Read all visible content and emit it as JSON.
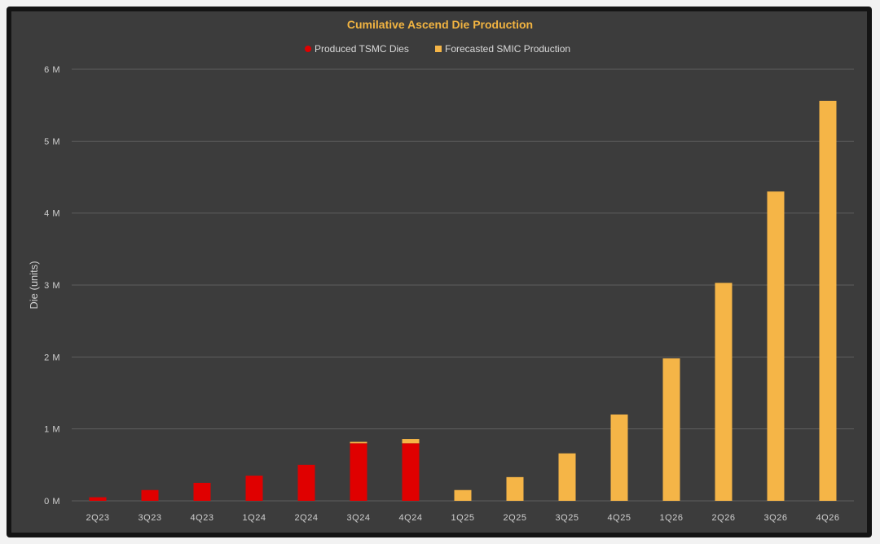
{
  "chart_data": {
    "type": "bar",
    "stacked": true,
    "title": "Cumilative Ascend Die Production",
    "xlabel": "",
    "ylabel": "Die (units)",
    "ylim": [
      0,
      6000000
    ],
    "yticks": [
      0,
      1000000,
      2000000,
      3000000,
      4000000,
      5000000,
      6000000
    ],
    "ytick_labels": [
      "0 M",
      "1 M",
      "2 M",
      "3 M",
      "4 M",
      "5 M",
      "6 M"
    ],
    "categories": [
      "2Q23",
      "3Q23",
      "4Q23",
      "1Q24",
      "2Q24",
      "3Q24",
      "4Q24",
      "1Q25",
      "2Q25",
      "3Q25",
      "4Q25",
      "1Q26",
      "2Q26",
      "3Q26",
      "4Q26"
    ],
    "series": [
      {
        "name": "Produced TSMC Dies",
        "color": "#e00000",
        "values": [
          50000,
          150000,
          250000,
          350000,
          500000,
          800000,
          800000,
          0,
          0,
          0,
          0,
          0,
          0,
          0,
          0
        ]
      },
      {
        "name": "Forecasted SMIC Production",
        "color": "#f5b547",
        "values": [
          0,
          0,
          0,
          0,
          0,
          20000,
          60000,
          150000,
          330000,
          660000,
          1200000,
          1980000,
          3030000,
          4300000,
          5560000
        ]
      }
    ],
    "legend": "top",
    "grid": true
  }
}
